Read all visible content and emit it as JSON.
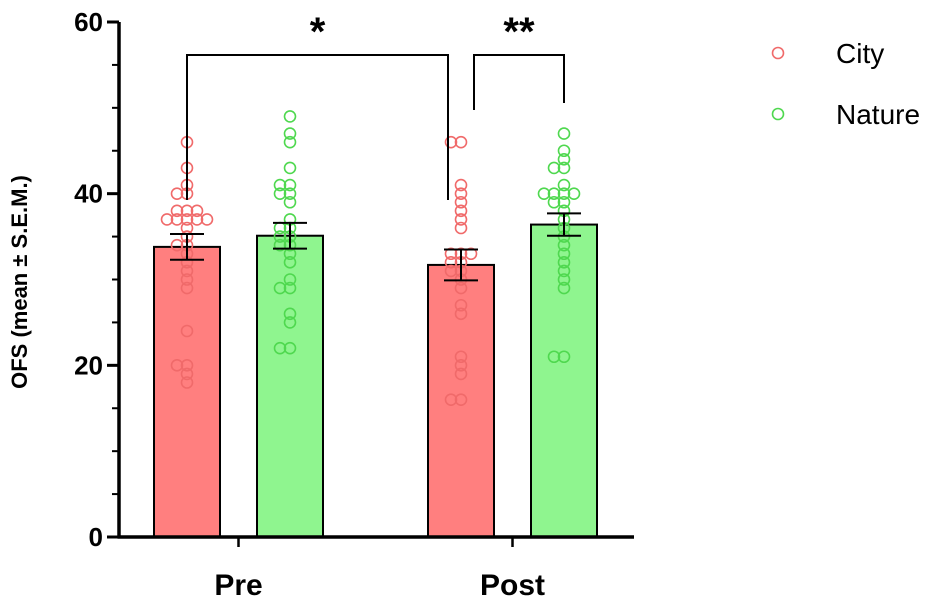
{
  "chart_data": {
    "type": "bar",
    "title": "",
    "xlabel": "",
    "ylabel": "OFS (mean ± S.E.M.)",
    "ylim": [
      0,
      60
    ],
    "yticks": [
      0,
      20,
      40,
      60
    ],
    "grid": false,
    "legend_position": "top-right",
    "categories": [
      "Pre",
      "Post"
    ],
    "series": [
      {
        "name": "City",
        "bar_color": "#ff7f7f",
        "point_color": "#f06a6a",
        "means": [
          33.8,
          31.7
        ],
        "sem": [
          1.5,
          1.8
        ],
        "points": [
          [
            46,
            43,
            41,
            40,
            40,
            38,
            38,
            38,
            37,
            37,
            37,
            37,
            37,
            36,
            35,
            34,
            34,
            33,
            32,
            31,
            30,
            29,
            24,
            20,
            20,
            19,
            18
          ],
          [
            46,
            46,
            41,
            40,
            39,
            38,
            37,
            36,
            33,
            33,
            33,
            32,
            32,
            31,
            31,
            30,
            29,
            27,
            26,
            21,
            20,
            19,
            16,
            16
          ]
        ]
      },
      {
        "name": "Nature",
        "bar_color": "#8ff58f",
        "point_color": "#4fd84f",
        "means": [
          35.1,
          36.4
        ],
        "sem": [
          1.5,
          1.3
        ],
        "points": [
          [
            49,
            47,
            46,
            43,
            41,
            41,
            40,
            40,
            39,
            37,
            36,
            36,
            35,
            35,
            34,
            34,
            33,
            32,
            30,
            29,
            29,
            26,
            25,
            22,
            22
          ],
          [
            47,
            45,
            44,
            43,
            43,
            41,
            40,
            40,
            40,
            40,
            39,
            39,
            38,
            37,
            36,
            35,
            34,
            33,
            32,
            31,
            30,
            29,
            21,
            21
          ]
        ]
      }
    ],
    "annotations": [
      {
        "text": "*",
        "from": [
          0,
          0
        ],
        "to": [
          1,
          0
        ]
      },
      {
        "text": "**",
        "from": [
          1,
          0
        ],
        "to": [
          1,
          1
        ]
      }
    ]
  }
}
